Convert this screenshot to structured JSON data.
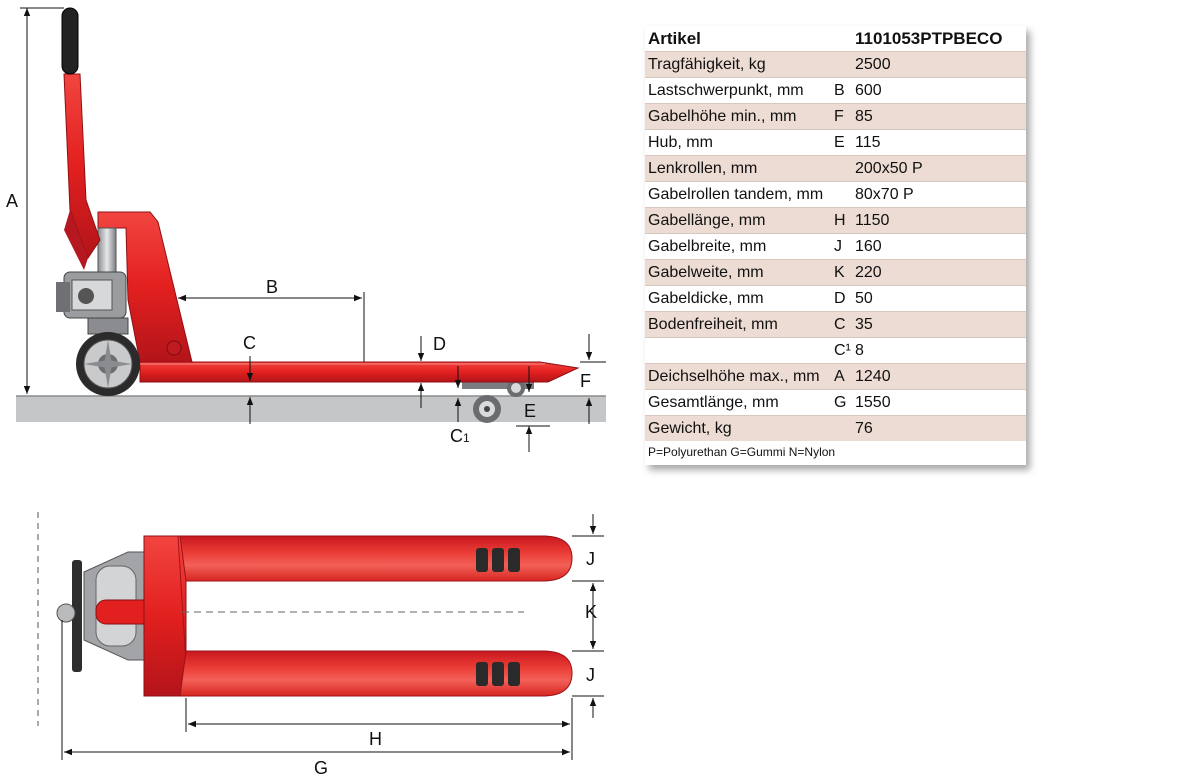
{
  "spec_table": {
    "header": {
      "label": "Artikel",
      "value": "1101053PTPBECO"
    },
    "rows": [
      {
        "label": "Tragfähigkeit, kg",
        "code": "",
        "value": "2500"
      },
      {
        "label": "Lastschwerpunkt, mm",
        "code": "B",
        "value": "600"
      },
      {
        "label": "Gabelhöhe min., mm",
        "code": "F",
        "value": "85"
      },
      {
        "label": "Hub, mm",
        "code": "E",
        "value": "115"
      },
      {
        "label": "Lenkrollen, mm",
        "code": "",
        "value": "200x50 P"
      },
      {
        "label": "Gabelrollen tandem, mm",
        "code": "",
        "value": "80x70 P"
      },
      {
        "label": "Gabellänge, mm",
        "code": "H",
        "value": "1150"
      },
      {
        "label": "Gabelbreite, mm",
        "code": "J",
        "value": "160"
      },
      {
        "label": "Gabelweite, mm",
        "code": "K",
        "value": "220"
      },
      {
        "label": "Gabeldicke, mm",
        "code": "D",
        "value": "50"
      },
      {
        "label": "Bodenfreiheit, mm",
        "code": "C",
        "value": "35"
      },
      {
        "label": "",
        "code": "C¹",
        "value": "8"
      },
      {
        "label": "Deichselhöhe max., mm",
        "code": "A",
        "value": "1240"
      },
      {
        "label": "Gesamtlänge, mm",
        "code": "G",
        "value": "1550"
      },
      {
        "label": "Gewicht, kg",
        "code": "",
        "value": "76"
      }
    ],
    "footnote": "P=Polyurethan G=Gummi N=Nylon"
  },
  "side_view": {
    "labels": {
      "A": "A",
      "B": "B",
      "C": "C",
      "C1": "C",
      "C1_sub": "1",
      "D": "D",
      "E": "E",
      "F": "F"
    }
  },
  "top_view": {
    "labels": {
      "G": "G",
      "H": "H",
      "J1": "J",
      "J2": "J",
      "K": "K"
    }
  },
  "colors": {
    "fork_red": "#e4202a",
    "dark_red": "#9e1218",
    "ground": "#c4c6c8",
    "row_shade": "#ecdcd3"
  }
}
